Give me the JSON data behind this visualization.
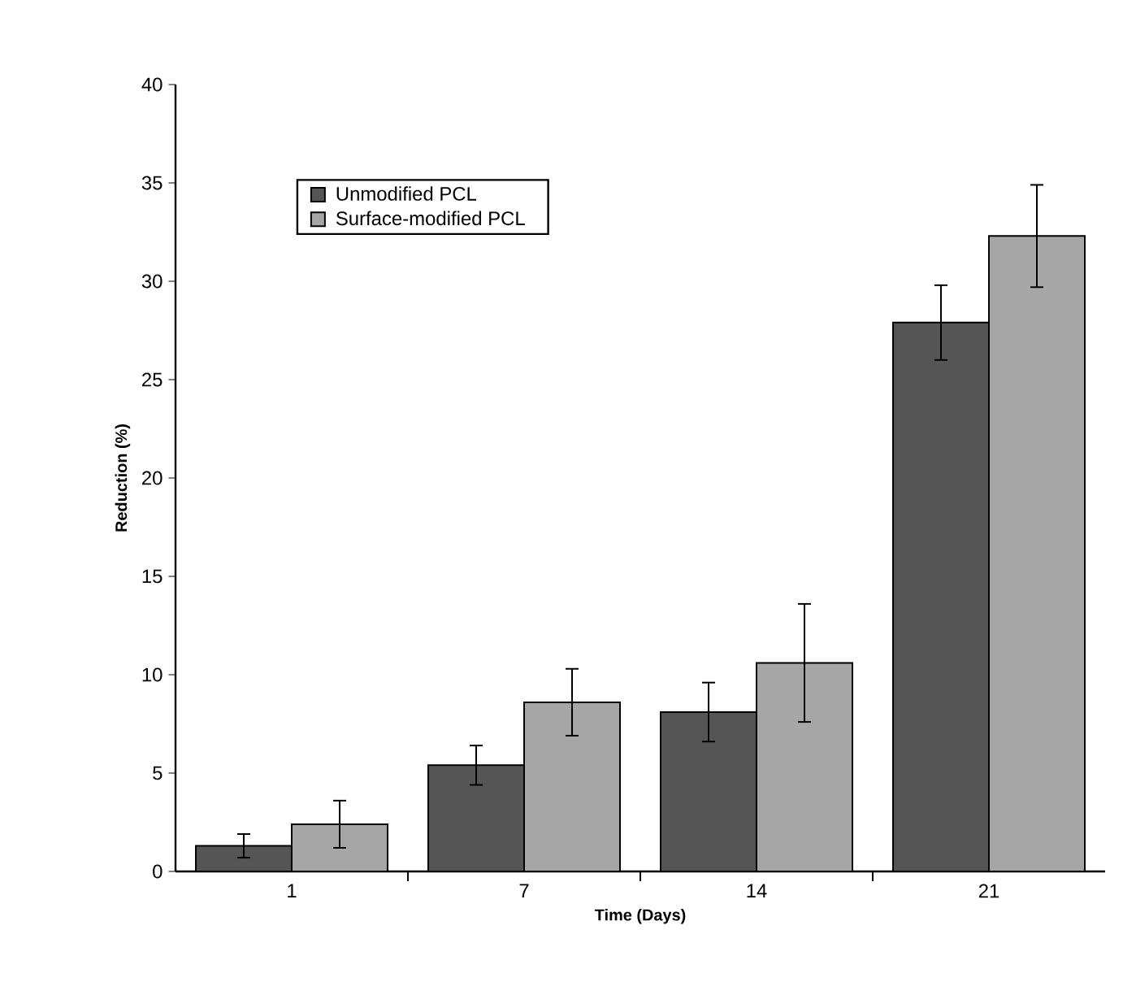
{
  "chart_data": {
    "type": "bar",
    "xlabel": "Time (Days)",
    "ylabel": "Reduction (%)",
    "categories": [
      "1",
      "7",
      "14",
      "21"
    ],
    "series": [
      {
        "name": "Unmodified PCL",
        "color": "#555555",
        "values": [
          1.3,
          5.4,
          8.1,
          27.9
        ],
        "errors": [
          0.6,
          1.0,
          1.5,
          1.9
        ]
      },
      {
        "name": "Surface-modified PCL",
        "color": "#a6a6a6",
        "values": [
          2.4,
          8.6,
          10.6,
          32.3
        ],
        "errors": [
          1.2,
          1.7,
          3.0,
          2.6
        ]
      }
    ],
    "ylim": [
      0,
      40
    ],
    "yticks": [
      0,
      5,
      10,
      15,
      20,
      25,
      30,
      35,
      40
    ],
    "grid": false,
    "legend": "top left"
  }
}
